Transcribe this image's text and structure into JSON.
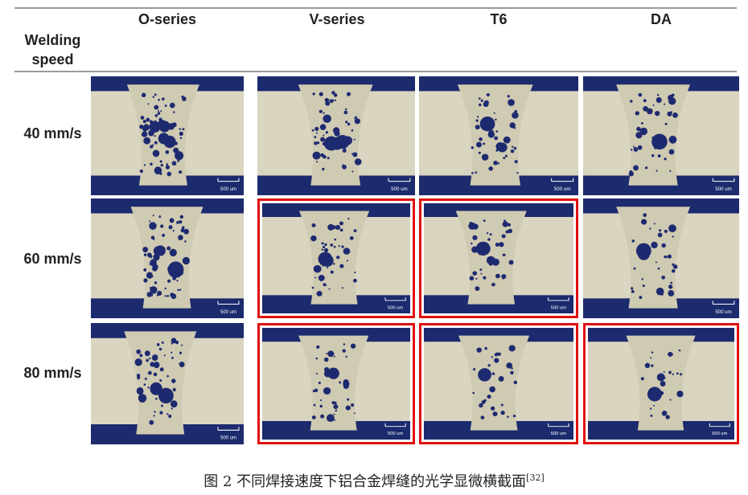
{
  "header": {
    "row_label": [
      "Welding",
      "speed"
    ],
    "columns": [
      "O-series",
      "V-series",
      "T6",
      "DA"
    ]
  },
  "rows": [
    {
      "label": "40 mm/s",
      "highlighted": [
        false,
        false,
        false,
        false
      ]
    },
    {
      "label": "60 mm/s",
      "highlighted": [
        false,
        true,
        true,
        false
      ]
    },
    {
      "label": "80 mm/s",
      "highlighted": [
        false,
        true,
        true,
        true
      ]
    }
  ],
  "scale_bar": "500 um",
  "caption": {
    "text": "图 2  不同焊接速度下铝合金焊缝的光学显微横截面",
    "ref": "[32]"
  },
  "colors": {
    "highlight": "#e01010",
    "mount": "#1c2a6e",
    "metal": "#d9d5c0"
  }
}
